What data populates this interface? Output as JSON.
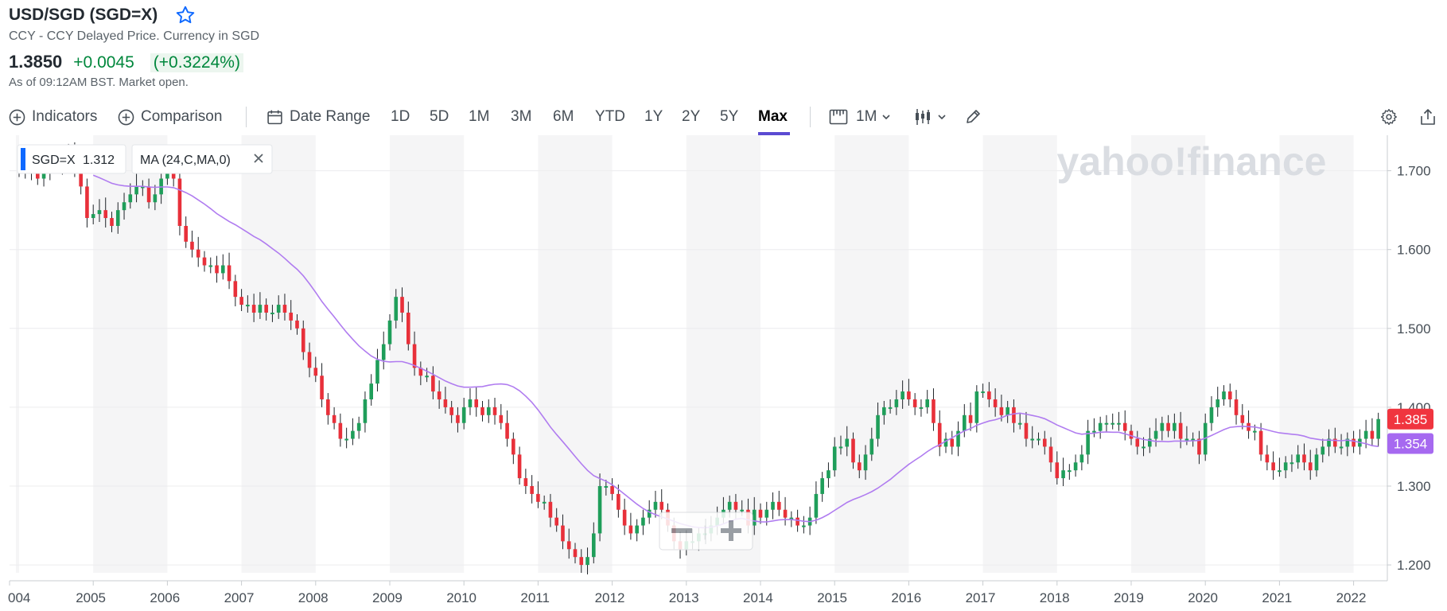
{
  "header": {
    "symbol": "USD/SGD (SGD=X)",
    "subtitle": "CCY - CCY Delayed Price. Currency in SGD",
    "price": "1.3850",
    "change": "+0.0045",
    "change_pct": "(+0.3224%)",
    "as_of": "As of 09:12AM BST. Market open."
  },
  "toolbar": {
    "indicators": "Indicators",
    "comparison": "Comparison",
    "date_range": "Date Range",
    "ranges": [
      "1D",
      "5D",
      "1M",
      "3M",
      "6M",
      "YTD",
      "1Y",
      "2Y",
      "5Y",
      "Max"
    ],
    "active_range": "Max",
    "interval": "1M"
  },
  "legend": {
    "series_label": "SGD=X",
    "series_value": "1.312",
    "indicator_label": "MA (24,C,MA,0)"
  },
  "watermark": "yahoo!finance",
  "colors": {
    "up": "#1f9e5a",
    "down": "#e8303a",
    "ma": "#b07cf0",
    "accent": "#5b4bd2",
    "price_tag": "#f0353f",
    "ma_tag": "#a669f0"
  },
  "chart_data": {
    "type": "candlestick",
    "interval": "1M",
    "x_start": "2004-01",
    "x_end": "2022-04",
    "xlabels": [
      "004",
      "2005",
      "2006",
      "2007",
      "2008",
      "2009",
      "2010",
      "2011",
      "2012",
      "2013",
      "2014",
      "2015",
      "2016",
      "2017",
      "2018",
      "2019",
      "2020",
      "2021",
      "2022"
    ],
    "ylim": [
      1.19,
      1.745
    ],
    "yticks": [
      "1.200",
      "1.300",
      "1.400",
      "1.500",
      "1.600",
      "1.700"
    ],
    "last_price_label": "1.385",
    "ma_last_label": "1.354",
    "ma_period": 24,
    "closes": [
      1.7,
      1.71,
      1.7,
      1.69,
      1.7,
      1.715,
      1.705,
      1.72,
      1.72,
      1.7,
      1.68,
      1.64,
      1.645,
      1.65,
      1.64,
      1.63,
      1.65,
      1.66,
      1.67,
      1.68,
      1.68,
      1.66,
      1.67,
      1.69,
      1.7,
      1.69,
      1.63,
      1.61,
      1.6,
      1.59,
      1.58,
      1.58,
      1.57,
      1.58,
      1.56,
      1.54,
      1.53,
      1.53,
      1.52,
      1.53,
      1.52,
      1.52,
      1.53,
      1.52,
      1.51,
      1.5,
      1.47,
      1.45,
      1.44,
      1.41,
      1.39,
      1.38,
      1.36,
      1.36,
      1.37,
      1.38,
      1.41,
      1.43,
      1.46,
      1.48,
      1.51,
      1.54,
      1.52,
      1.48,
      1.45,
      1.44,
      1.44,
      1.42,
      1.41,
      1.4,
      1.39,
      1.38,
      1.4,
      1.41,
      1.4,
      1.39,
      1.4,
      1.39,
      1.38,
      1.36,
      1.34,
      1.31,
      1.3,
      1.29,
      1.28,
      1.28,
      1.26,
      1.25,
      1.23,
      1.22,
      1.21,
      1.2,
      1.21,
      1.24,
      1.3,
      1.3,
      1.29,
      1.27,
      1.25,
      1.24,
      1.25,
      1.26,
      1.27,
      1.28,
      1.27,
      1.25,
      1.23,
      1.22,
      1.23,
      1.23,
      1.24,
      1.24,
      1.25,
      1.26,
      1.27,
      1.28,
      1.27,
      1.27,
      1.25,
      1.27,
      1.26,
      1.27,
      1.28,
      1.27,
      1.26,
      1.26,
      1.25,
      1.25,
      1.26,
      1.29,
      1.31,
      1.32,
      1.35,
      1.35,
      1.36,
      1.33,
      1.32,
      1.34,
      1.36,
      1.39,
      1.4,
      1.4,
      1.41,
      1.42,
      1.41,
      1.4,
      1.4,
      1.41,
      1.38,
      1.35,
      1.36,
      1.35,
      1.37,
      1.39,
      1.38,
      1.42,
      1.42,
      1.41,
      1.4,
      1.39,
      1.4,
      1.38,
      1.38,
      1.36,
      1.36,
      1.36,
      1.35,
      1.33,
      1.31,
      1.32,
      1.32,
      1.33,
      1.34,
      1.37,
      1.37,
      1.38,
      1.38,
      1.38,
      1.38,
      1.37,
      1.36,
      1.35,
      1.35,
      1.36,
      1.37,
      1.38,
      1.37,
      1.38,
      1.36,
      1.36,
      1.36,
      1.34,
      1.38,
      1.4,
      1.41,
      1.42,
      1.41,
      1.39,
      1.38,
      1.37,
      1.37,
      1.34,
      1.33,
      1.32,
      1.32,
      1.33,
      1.33,
      1.34,
      1.33,
      1.32,
      1.34,
      1.35,
      1.36,
      1.35,
      1.35,
      1.36,
      1.35,
      1.36,
      1.37,
      1.36,
      1.385
    ]
  }
}
